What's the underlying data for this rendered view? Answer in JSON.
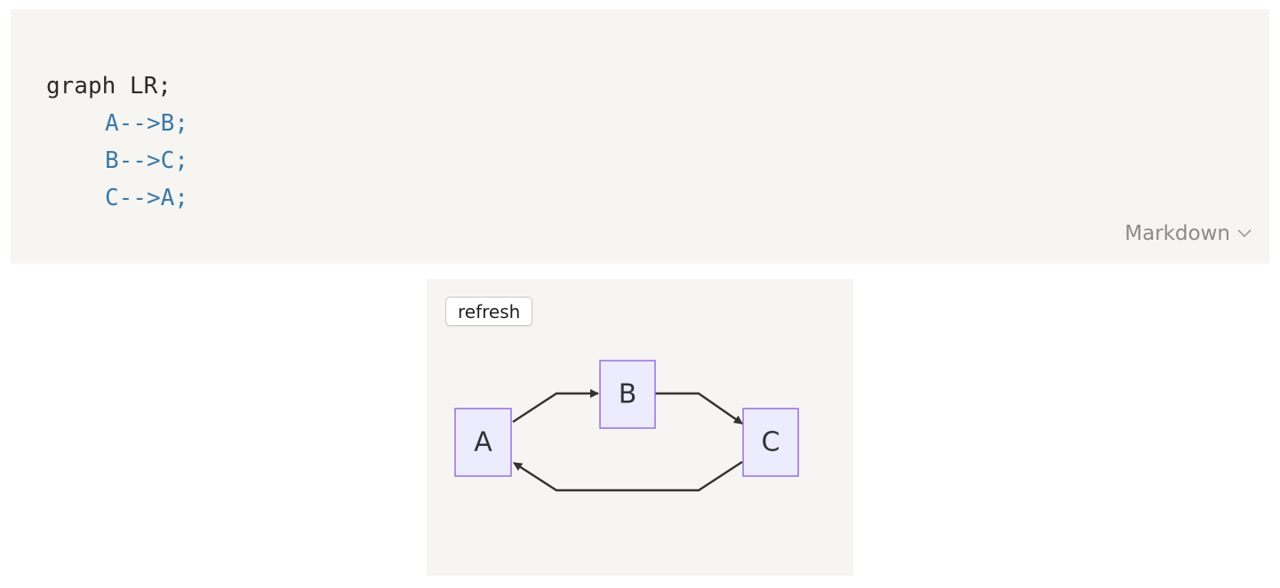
{
  "code_block": {
    "lines": {
      "l1": "graph LR;",
      "l2": "A-->B;",
      "l3": "B-->C;",
      "l4": "C-->A;"
    },
    "language_label": "Markdown",
    "colors": {
      "background": "#f6f5f2",
      "text": "#2b2b2b",
      "edge_text": "#3b79a6"
    }
  },
  "diagram": {
    "refresh_label": "refresh",
    "nodes": {
      "a": "A",
      "b": "B",
      "c": "C"
    },
    "edges": [
      {
        "from": "A",
        "to": "B"
      },
      {
        "from": "B",
        "to": "C"
      },
      {
        "from": "C",
        "to": "A"
      }
    ],
    "colors": {
      "node_fill": "#ececfe",
      "node_stroke": "#9370db",
      "edge": "#333333"
    }
  }
}
